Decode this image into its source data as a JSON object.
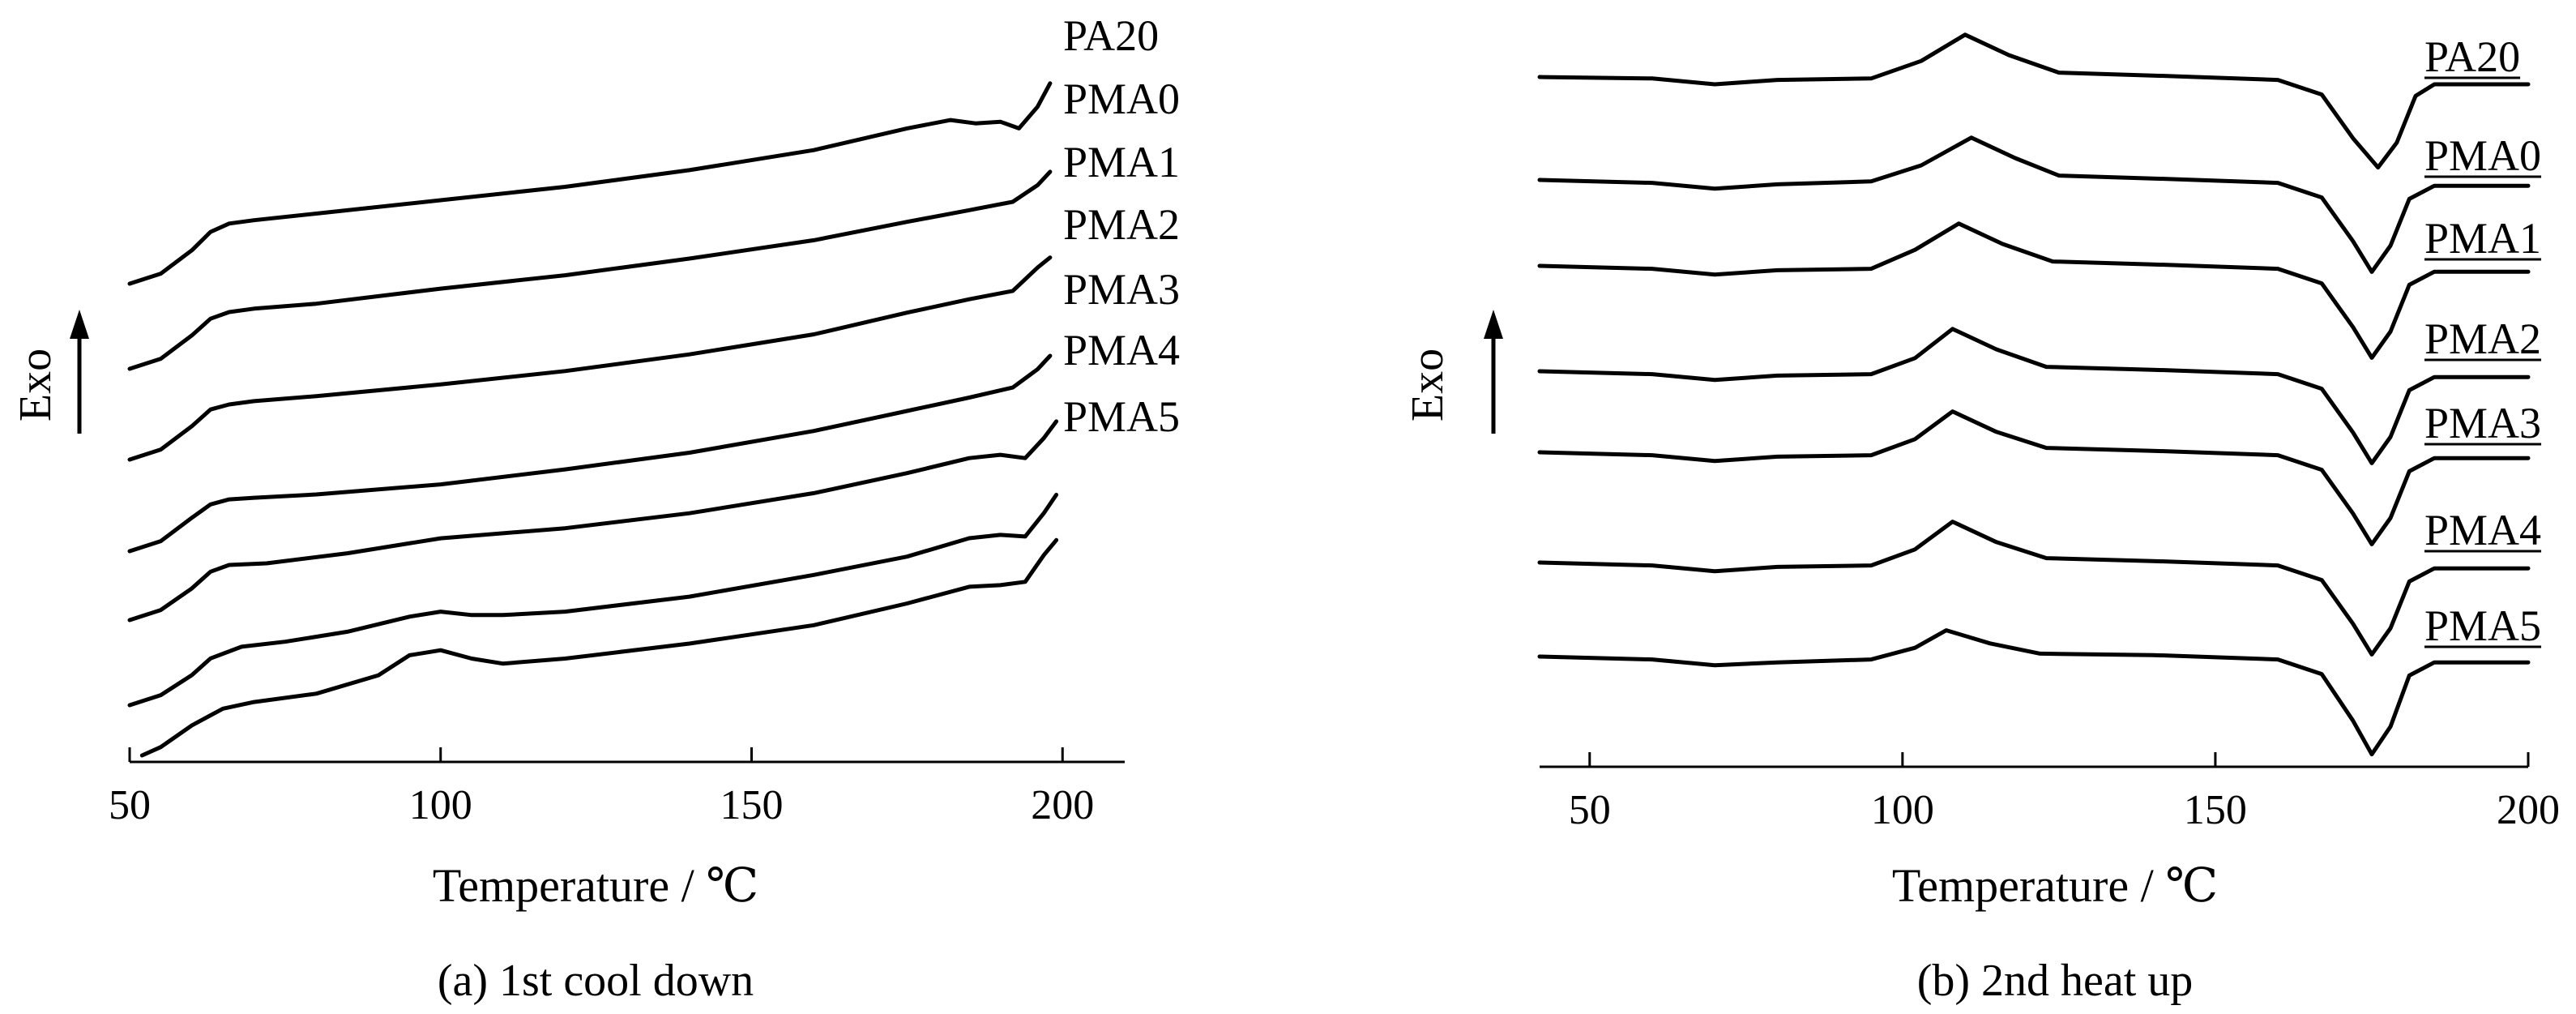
{
  "chart_data": [
    {
      "type": "line",
      "caption": "(a)  1st cool down",
      "xlabel": "Temperature / ℃",
      "ylabel": "Exo",
      "xlim": [
        50,
        210
      ],
      "xticks": [
        50,
        100,
        150,
        200
      ],
      "grid": false,
      "labels_underlined": false,
      "series": [
        {
          "name": "PA20",
          "points": [
            [
              50,
              0.0
            ],
            [
              55,
              0.12
            ],
            [
              60,
              0.4
            ],
            [
              63,
              0.62
            ],
            [
              66,
              0.72
            ],
            [
              70,
              0.76
            ],
            [
              80,
              0.84
            ],
            [
              100,
              1.0
            ],
            [
              120,
              1.16
            ],
            [
              140,
              1.36
            ],
            [
              160,
              1.6
            ],
            [
              175,
              1.86
            ],
            [
              182,
              1.96
            ],
            [
              186,
              1.92
            ],
            [
              190,
              1.94
            ],
            [
              193,
              1.86
            ],
            [
              196,
              2.12
            ],
            [
              198,
              2.4
            ]
          ]
        },
        {
          "name": "PMA0",
          "points": [
            [
              50,
              0.0
            ],
            [
              55,
              0.12
            ],
            [
              60,
              0.4
            ],
            [
              63,
              0.6
            ],
            [
              66,
              0.68
            ],
            [
              70,
              0.72
            ],
            [
              80,
              0.78
            ],
            [
              100,
              0.96
            ],
            [
              120,
              1.12
            ],
            [
              140,
              1.32
            ],
            [
              160,
              1.54
            ],
            [
              175,
              1.76
            ],
            [
              185,
              1.9
            ],
            [
              192,
              2.0
            ],
            [
              196,
              2.2
            ],
            [
              198,
              2.36
            ]
          ]
        },
        {
          "name": "PMA1",
          "points": [
            [
              50,
              0.0
            ],
            [
              55,
              0.12
            ],
            [
              60,
              0.4
            ],
            [
              63,
              0.6
            ],
            [
              66,
              0.66
            ],
            [
              70,
              0.7
            ],
            [
              80,
              0.76
            ],
            [
              100,
              0.9
            ],
            [
              120,
              1.06
            ],
            [
              140,
              1.26
            ],
            [
              160,
              1.5
            ],
            [
              175,
              1.76
            ],
            [
              185,
              1.92
            ],
            [
              192,
              2.02
            ],
            [
              196,
              2.3
            ],
            [
              198,
              2.42
            ]
          ]
        },
        {
          "name": "PMA2",
          "points": [
            [
              50,
              0.0
            ],
            [
              55,
              0.12
            ],
            [
              60,
              0.4
            ],
            [
              63,
              0.56
            ],
            [
              66,
              0.62
            ],
            [
              70,
              0.64
            ],
            [
              80,
              0.68
            ],
            [
              100,
              0.8
            ],
            [
              120,
              0.98
            ],
            [
              140,
              1.18
            ],
            [
              160,
              1.44
            ],
            [
              175,
              1.68
            ],
            [
              185,
              1.84
            ],
            [
              192,
              1.96
            ],
            [
              196,
              2.18
            ],
            [
              198,
              2.34
            ]
          ]
        },
        {
          "name": "PMA3",
          "points": [
            [
              50,
              0.0
            ],
            [
              55,
              0.12
            ],
            [
              60,
              0.38
            ],
            [
              63,
              0.58
            ],
            [
              66,
              0.66
            ],
            [
              72,
              0.68
            ],
            [
              85,
              0.8
            ],
            [
              100,
              0.98
            ],
            [
              120,
              1.1
            ],
            [
              140,
              1.28
            ],
            [
              160,
              1.52
            ],
            [
              175,
              1.76
            ],
            [
              185,
              1.94
            ],
            [
              190,
              1.98
            ],
            [
              194,
              1.94
            ],
            [
              197,
              2.18
            ],
            [
              199,
              2.38
            ]
          ]
        },
        {
          "name": "PMA4",
          "points": [
            [
              50,
              0.0
            ],
            [
              55,
              0.12
            ],
            [
              60,
              0.36
            ],
            [
              63,
              0.56
            ],
            [
              68,
              0.7
            ],
            [
              75,
              0.76
            ],
            [
              85,
              0.88
            ],
            [
              95,
              1.06
            ],
            [
              100,
              1.12
            ],
            [
              105,
              1.08
            ],
            [
              110,
              1.08
            ],
            [
              120,
              1.12
            ],
            [
              140,
              1.3
            ],
            [
              160,
              1.56
            ],
            [
              175,
              1.78
            ],
            [
              185,
              2.0
            ],
            [
              190,
              2.04
            ],
            [
              194,
              2.02
            ],
            [
              197,
              2.3
            ],
            [
              199,
              2.52
            ]
          ]
        },
        {
          "name": "PMA5",
          "points": [
            [
              52,
              0.0
            ],
            [
              55,
              0.1
            ],
            [
              60,
              0.36
            ],
            [
              65,
              0.56
            ],
            [
              70,
              0.64
            ],
            [
              80,
              0.74
            ],
            [
              90,
              0.96
            ],
            [
              95,
              1.2
            ],
            [
              100,
              1.26
            ],
            [
              105,
              1.16
            ],
            [
              110,
              1.1
            ],
            [
              120,
              1.16
            ],
            [
              140,
              1.34
            ],
            [
              160,
              1.56
            ],
            [
              175,
              1.82
            ],
            [
              185,
              2.02
            ],
            [
              190,
              2.04
            ],
            [
              194,
              2.08
            ],
            [
              197,
              2.4
            ],
            [
              199,
              2.58
            ]
          ]
        }
      ]
    },
    {
      "type": "line",
      "caption": "(b)  2nd heat up",
      "xlabel": "Temperature / ℃",
      "ylabel": "Exo",
      "xlim": [
        42,
        200
      ],
      "xticks": [
        50,
        100,
        150,
        200
      ],
      "grid": false,
      "labels_underlined": true,
      "series": [
        {
          "name": "PA20",
          "points": [
            [
              42,
              0.0
            ],
            [
              60,
              -0.02
            ],
            [
              70,
              -0.1
            ],
            [
              80,
              -0.04
            ],
            [
              95,
              -0.02
            ],
            [
              103,
              0.22
            ],
            [
              110,
              0.58
            ],
            [
              117,
              0.3
            ],
            [
              125,
              0.06
            ],
            [
              140,
              0.02
            ],
            [
              160,
              -0.04
            ],
            [
              167,
              -0.24
            ],
            [
              172,
              -0.84
            ],
            [
              176,
              -1.24
            ],
            [
              179,
              -0.9
            ],
            [
              182,
              -0.26
            ],
            [
              185,
              -0.1
            ],
            [
              200,
              -0.1
            ]
          ]
        },
        {
          "name": "PMA0",
          "points": [
            [
              42,
              0.0
            ],
            [
              60,
              -0.04
            ],
            [
              70,
              -0.12
            ],
            [
              80,
              -0.06
            ],
            [
              95,
              -0.02
            ],
            [
              103,
              0.2
            ],
            [
              111,
              0.58
            ],
            [
              118,
              0.3
            ],
            [
              125,
              0.06
            ],
            [
              140,
              0.02
            ],
            [
              160,
              -0.04
            ],
            [
              167,
              -0.24
            ],
            [
              172,
              -0.84
            ],
            [
              175,
              -1.26
            ],
            [
              178,
              -0.9
            ],
            [
              181,
              -0.26
            ],
            [
              185,
              -0.08
            ],
            [
              200,
              -0.08
            ]
          ]
        },
        {
          "name": "PMA1",
          "points": [
            [
              42,
              0.0
            ],
            [
              60,
              -0.04
            ],
            [
              70,
              -0.12
            ],
            [
              80,
              -0.06
            ],
            [
              95,
              -0.04
            ],
            [
              102,
              0.22
            ],
            [
              109,
              0.58
            ],
            [
              116,
              0.3
            ],
            [
              124,
              0.06
            ],
            [
              140,
              0.02
            ],
            [
              160,
              -0.04
            ],
            [
              167,
              -0.24
            ],
            [
              172,
              -0.84
            ],
            [
              175,
              -1.26
            ],
            [
              178,
              -0.9
            ],
            [
              181,
              -0.26
            ],
            [
              185,
              -0.08
            ],
            [
              200,
              -0.08
            ]
          ]
        },
        {
          "name": "PMA2",
          "points": [
            [
              42,
              0.0
            ],
            [
              60,
              -0.04
            ],
            [
              70,
              -0.12
            ],
            [
              80,
              -0.06
            ],
            [
              95,
              -0.04
            ],
            [
              102,
              0.18
            ],
            [
              108,
              0.58
            ],
            [
              115,
              0.3
            ],
            [
              123,
              0.06
            ],
            [
              140,
              0.02
            ],
            [
              160,
              -0.04
            ],
            [
              167,
              -0.24
            ],
            [
              172,
              -0.84
            ],
            [
              175,
              -1.26
            ],
            [
              178,
              -0.9
            ],
            [
              181,
              -0.26
            ],
            [
              185,
              -0.08
            ],
            [
              200,
              -0.08
            ]
          ]
        },
        {
          "name": "PMA3",
          "points": [
            [
              42,
              0.0
            ],
            [
              60,
              -0.04
            ],
            [
              70,
              -0.12
            ],
            [
              80,
              -0.06
            ],
            [
              95,
              -0.04
            ],
            [
              102,
              0.18
            ],
            [
              108,
              0.56
            ],
            [
              115,
              0.28
            ],
            [
              123,
              0.06
            ],
            [
              140,
              0.02
            ],
            [
              160,
              -0.04
            ],
            [
              167,
              -0.24
            ],
            [
              172,
              -0.84
            ],
            [
              175,
              -1.26
            ],
            [
              178,
              -0.9
            ],
            [
              181,
              -0.26
            ],
            [
              185,
              -0.08
            ],
            [
              200,
              -0.08
            ]
          ]
        },
        {
          "name": "PMA4",
          "points": [
            [
              42,
              0.0
            ],
            [
              60,
              -0.04
            ],
            [
              70,
              -0.12
            ],
            [
              80,
              -0.06
            ],
            [
              95,
              -0.04
            ],
            [
              102,
              0.18
            ],
            [
              108,
              0.56
            ],
            [
              115,
              0.28
            ],
            [
              123,
              0.06
            ],
            [
              140,
              0.02
            ],
            [
              160,
              -0.04
            ],
            [
              167,
              -0.24
            ],
            [
              172,
              -0.84
            ],
            [
              175,
              -1.26
            ],
            [
              178,
              -0.9
            ],
            [
              181,
              -0.26
            ],
            [
              185,
              -0.08
            ],
            [
              200,
              -0.08
            ]
          ]
        },
        {
          "name": "PMA5",
          "points": [
            [
              42,
              0.0
            ],
            [
              60,
              -0.04
            ],
            [
              70,
              -0.12
            ],
            [
              80,
              -0.08
            ],
            [
              95,
              -0.04
            ],
            [
              102,
              0.12
            ],
            [
              107,
              0.36
            ],
            [
              114,
              0.18
            ],
            [
              122,
              0.04
            ],
            [
              140,
              0.02
            ],
            [
              160,
              -0.04
            ],
            [
              167,
              -0.24
            ],
            [
              172,
              -0.88
            ],
            [
              175,
              -1.34
            ],
            [
              178,
              -0.96
            ],
            [
              181,
              -0.26
            ],
            [
              185,
              -0.08
            ],
            [
              200,
              -0.08
            ]
          ]
        }
      ]
    }
  ]
}
